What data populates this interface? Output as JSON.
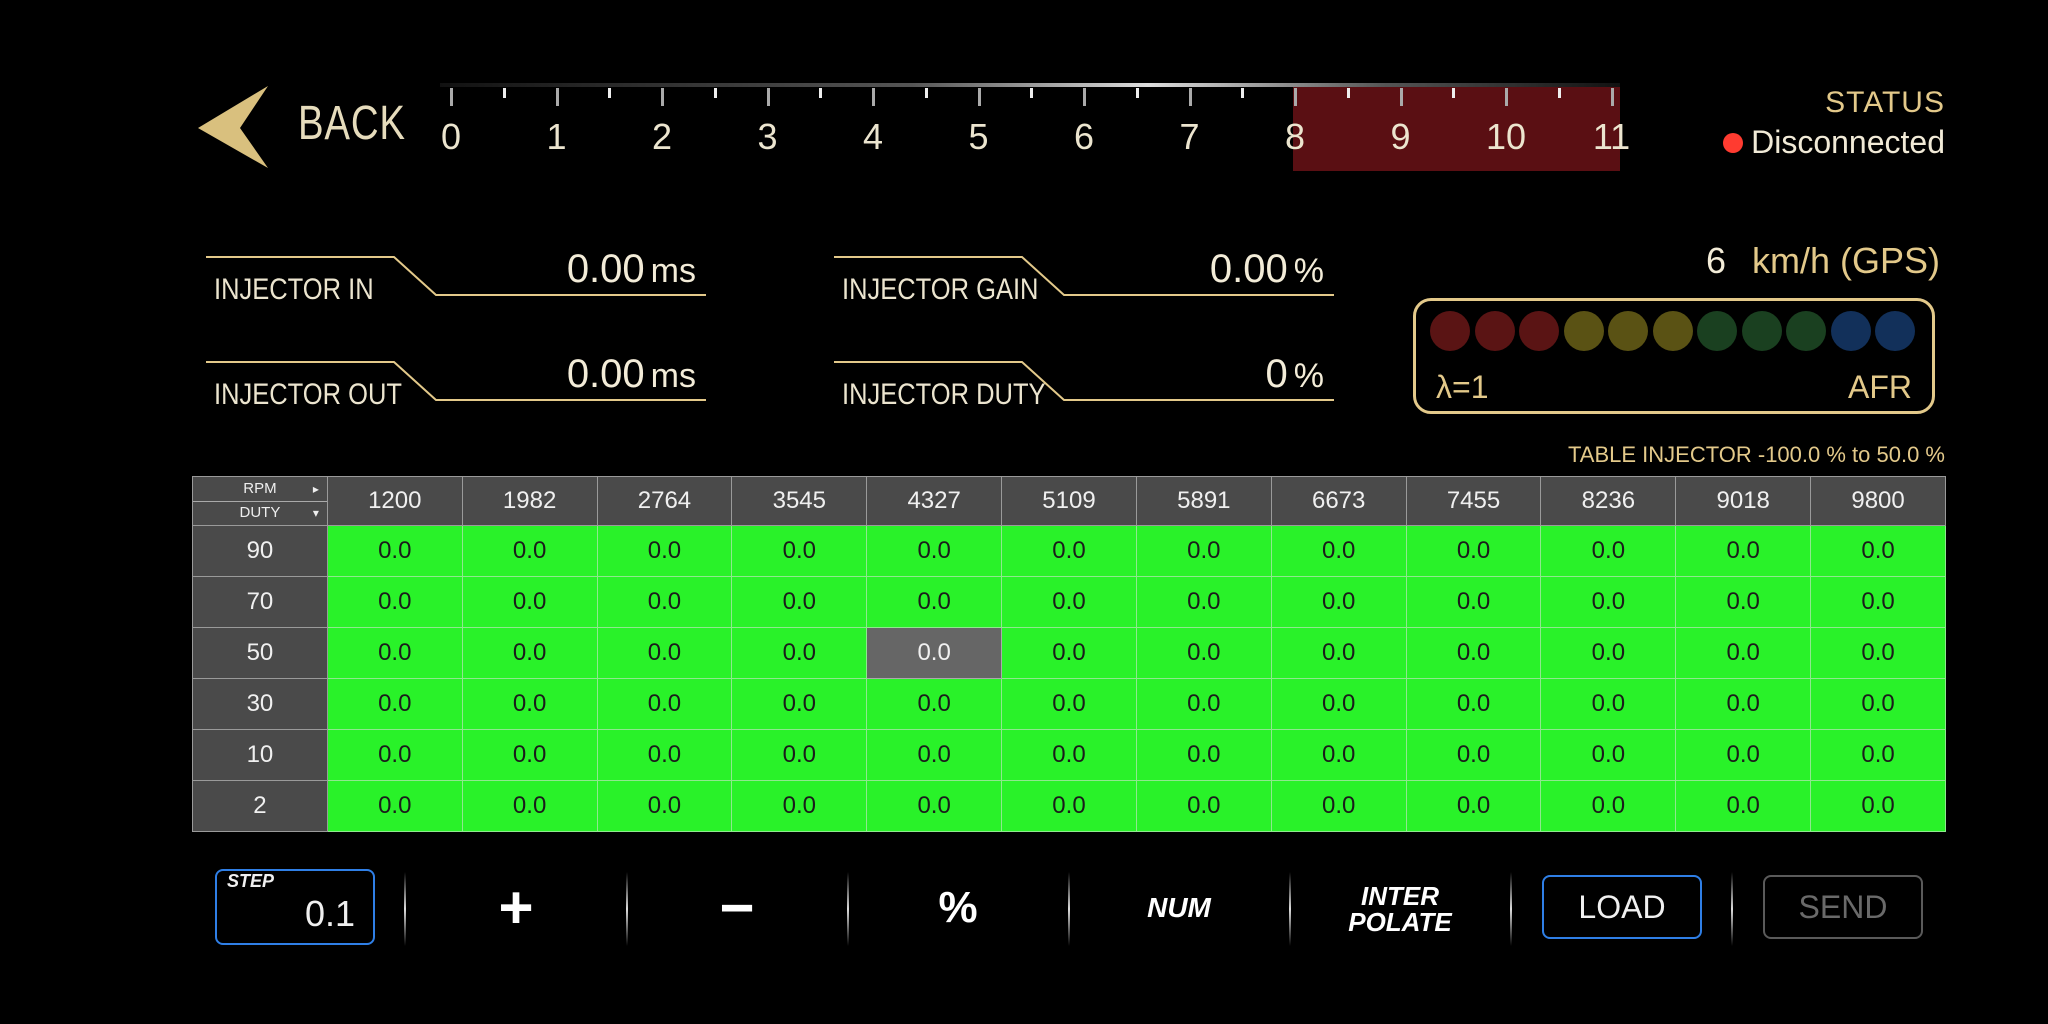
{
  "header": {
    "back_label": "BACK",
    "status_label": "STATUS",
    "status_value": "Disconnected",
    "status_color": "#ff3b30"
  },
  "gauge": {
    "labels": [
      "0",
      "1",
      "2",
      "3",
      "4",
      "5",
      "6",
      "7",
      "8",
      "9",
      "10",
      "11"
    ],
    "redzone_color": "#5a0f13"
  },
  "readouts": {
    "injector_in": {
      "label": "INJECTOR IN",
      "value": "0.00",
      "unit": "ms"
    },
    "injector_out": {
      "label": "INJECTOR OUT",
      "value": "0.00",
      "unit": "ms"
    },
    "injector_gain": {
      "label": "INJECTOR GAIN",
      "value": "0.00",
      "unit": "%"
    },
    "injector_duty": {
      "label": "INJECTOR DUTY",
      "value": "0",
      "unit": "%"
    }
  },
  "speed": {
    "value": "6",
    "unit": "km/h (GPS)"
  },
  "lambda": {
    "left_label": "λ=1",
    "right_label": "AFR",
    "led_colors": [
      "#5a1414",
      "#5a1414",
      "#5a1414",
      "#5a5214",
      "#5a5214",
      "#5a5214",
      "#1a4020",
      "#1a4020",
      "#1a4020",
      "#12305a",
      "#12305a"
    ]
  },
  "table": {
    "note": "TABLE INJECTOR -100.0 % to 50.0 %",
    "corner_top": "RPM",
    "corner_bottom": "DUTY",
    "columns": [
      "1200",
      "1982",
      "2764",
      "3545",
      "4327",
      "5109",
      "5891",
      "6673",
      "7455",
      "8236",
      "9018",
      "9800"
    ],
    "rows": [
      {
        "label": "90",
        "values": [
          "0.0",
          "0.0",
          "0.0",
          "0.0",
          "0.0",
          "0.0",
          "0.0",
          "0.0",
          "0.0",
          "0.0",
          "0.0",
          "0.0"
        ]
      },
      {
        "label": "70",
        "values": [
          "0.0",
          "0.0",
          "0.0",
          "0.0",
          "0.0",
          "0.0",
          "0.0",
          "0.0",
          "0.0",
          "0.0",
          "0.0",
          "0.0"
        ]
      },
      {
        "label": "50",
        "values": [
          "0.0",
          "0.0",
          "0.0",
          "0.0",
          "0.0",
          "0.0",
          "0.0",
          "0.0",
          "0.0",
          "0.0",
          "0.0",
          "0.0"
        ]
      },
      {
        "label": "30",
        "values": [
          "0.0",
          "0.0",
          "0.0",
          "0.0",
          "0.0",
          "0.0",
          "0.0",
          "0.0",
          "0.0",
          "0.0",
          "0.0",
          "0.0"
        ]
      },
      {
        "label": "10",
        "values": [
          "0.0",
          "0.0",
          "0.0",
          "0.0",
          "0.0",
          "0.0",
          "0.0",
          "0.0",
          "0.0",
          "0.0",
          "0.0",
          "0.0"
        ]
      },
      {
        "label": "2",
        "values": [
          "0.0",
          "0.0",
          "0.0",
          "0.0",
          "0.0",
          "0.0",
          "0.0",
          "0.0",
          "0.0",
          "0.0",
          "0.0",
          "0.0"
        ]
      }
    ],
    "selected": {
      "row": 2,
      "col": 4
    },
    "cell_color": "#29f229"
  },
  "toolbar": {
    "step_label": "STEP",
    "step_value": "0.1",
    "plus_label": "+",
    "minus_label": "−",
    "percent_label": "%",
    "num_label": "NUM",
    "interpolate_line1": "INTER",
    "interpolate_line2": "POLATE",
    "load_label": "LOAD",
    "send_label": "SEND"
  }
}
